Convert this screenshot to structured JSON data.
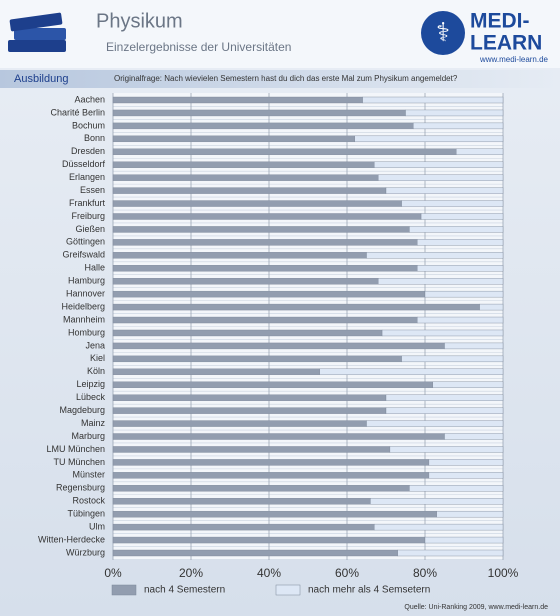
{
  "header": {
    "title": "Physikum",
    "subtitle": "Einzelergebnisse der Universitäten",
    "logo_top": "MEDI-",
    "logo_bottom": "LEARN",
    "logo_url": "www.medi-learn.de",
    "section": "Ausbildung",
    "question": "Originalfrage: Nach wievielen Semestern hast du dich das erste Mal zum Physikum angemeldet?"
  },
  "chart_data": {
    "type": "bar",
    "orientation": "horizontal",
    "stacked": true,
    "categories": [
      "Aachen",
      "Charité Berlin",
      "Bochum",
      "Bonn",
      "Dresden",
      "Düsseldorf",
      "Erlangen",
      "Essen",
      "Frankfurt",
      "Freiburg",
      "Gießen",
      "Göttingen",
      "Greifswald",
      "Halle",
      "Hamburg",
      "Hannover",
      "Heidelberg",
      "Mannheim",
      "Homburg",
      "Jena",
      "Kiel",
      "Köln",
      "Leipzig",
      "Lübeck",
      "Magdeburg",
      "Mainz",
      "Marburg",
      "LMU München",
      "TU München",
      "Münster",
      "Regensburg",
      "Rostock",
      "Tübingen",
      "Ulm",
      "Witten-Herdecke",
      "Würzburg"
    ],
    "series": [
      {
        "name": "nach 4 Semestern",
        "color": "#929daf",
        "values": [
          64,
          75,
          77,
          62,
          88,
          67,
          68,
          70,
          74,
          79,
          76,
          78,
          65,
          78,
          68,
          80,
          94,
          78,
          69,
          85,
          74,
          53,
          82,
          70,
          70,
          65,
          85,
          71,
          81,
          81,
          76,
          66,
          83,
          67,
          80,
          73
        ]
      },
      {
        "name": "nach mehr als 4 Semsetern",
        "color": "#dde7f5",
        "values": [
          36,
          25,
          23,
          38,
          12,
          33,
          32,
          30,
          26,
          21,
          24,
          22,
          35,
          22,
          32,
          20,
          6,
          22,
          31,
          15,
          26,
          47,
          18,
          30,
          30,
          35,
          15,
          29,
          19,
          19,
          24,
          34,
          17,
          33,
          20,
          27
        ]
      }
    ],
    "xlim": [
      0,
      100
    ],
    "xticks": [
      {
        "value": 0,
        "label": "0%"
      },
      {
        "value": 20,
        "label": "20%"
      },
      {
        "value": 40,
        "label": "40%"
      },
      {
        "value": 60,
        "label": "60%"
      },
      {
        "value": 80,
        "label": "80%"
      },
      {
        "value": 100,
        "label": "100%"
      }
    ],
    "grid": true,
    "legend": "bottom",
    "source": "Quelle: Uni-Ranking 2009, www.medi-learn.de"
  }
}
